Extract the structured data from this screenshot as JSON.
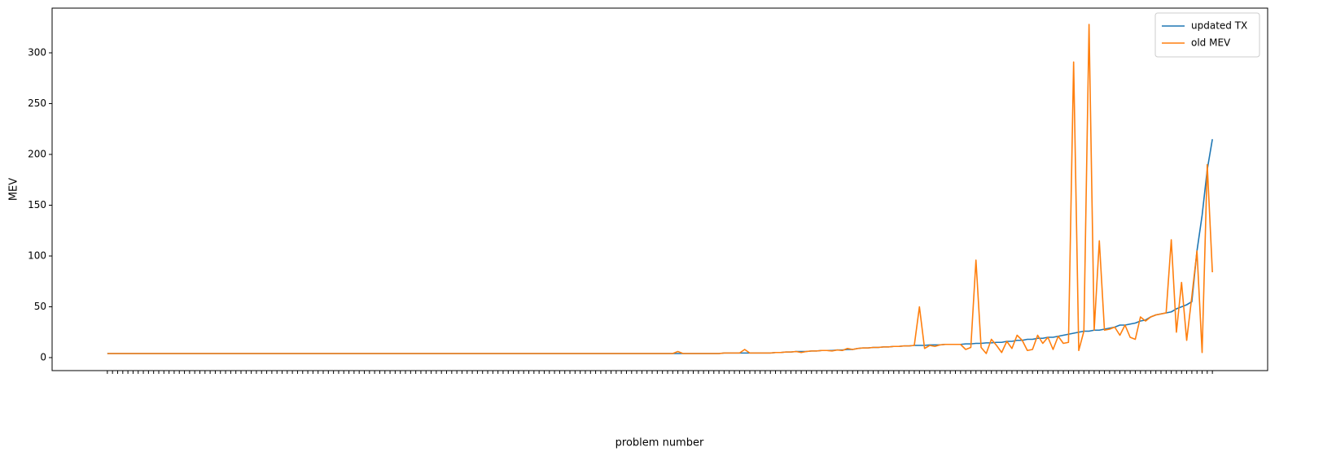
{
  "chart_data": {
    "type": "line",
    "xlabel": "problem number",
    "ylabel": "MEV",
    "categories": [
      null,
      null,
      null,
      null,
      null,
      null,
      null,
      null,
      null,
      null,
      null,
      null,
      null,
      null,
      null,
      null,
      null,
      null,
      null,
      null,
      null,
      null,
      null,
      null,
      null,
      null,
      null,
      null,
      null,
      null,
      null,
      null,
      null,
      null,
      null,
      null,
      null,
      null,
      null,
      null,
      null,
      null,
      null,
      null,
      null,
      null,
      null,
      null,
      null,
      null,
      null,
      null,
      null,
      null,
      null,
      null,
      null,
      null,
      null,
      null,
      null,
      null,
      null,
      null,
      null,
      null,
      null,
      null,
      null,
      null,
      null,
      null,
      null,
      null,
      null,
      null,
      null,
      null,
      null,
      null,
      null,
      null,
      null,
      null,
      null,
      null,
      null,
      null,
      null,
      null,
      null,
      null,
      null,
      null,
      null,
      null,
      null,
      null,
      null,
      null,
      null,
      null,
      null,
      null,
      null,
      null,
      null,
      null,
      null,
      null,
      null,
      null,
      null,
      null,
      null,
      null,
      null,
      null,
      null,
      null,
      null,
      null,
      null,
      null,
      null,
      null,
      null,
      null,
      null,
      null,
      null,
      null,
      null,
      null,
      null,
      null,
      null,
      null,
      null,
      null,
      null,
      null,
      null,
      null,
      null,
      null,
      null,
      null,
      null,
      null,
      null,
      null,
      null,
      null,
      null,
      null,
      null,
      null,
      null,
      null,
      null,
      null,
      null,
      null,
      null,
      null,
      null,
      null,
      null,
      null,
      null,
      null,
      null,
      null,
      null,
      null,
      null,
      null,
      null,
      null,
      null,
      null,
      null,
      null,
      null,
      null,
      null,
      null,
      null,
      null,
      null,
      null,
      null,
      null,
      null,
      null,
      null,
      null,
      null,
      null,
      null,
      null,
      null,
      null,
      null,
      null,
      null,
      null,
      null,
      null,
      null,
      null,
      null,
      null,
      null,
      null
    ],
    "series": [
      {
        "name": "updated TX",
        "color": "#1f77b4",
        "values": [
          4,
          4,
          4,
          4,
          4,
          4,
          4,
          4,
          4,
          4,
          4,
          4,
          4,
          4,
          4,
          4,
          4,
          4,
          4,
          4,
          4,
          4,
          4,
          4,
          4,
          4,
          4,
          4,
          4,
          4,
          4,
          4,
          4,
          4,
          4,
          4,
          4,
          4,
          4,
          4,
          4,
          4,
          4,
          4,
          4,
          4,
          4,
          4,
          4,
          4,
          4,
          4,
          4,
          4,
          4,
          4,
          4,
          4,
          4,
          4,
          4,
          4,
          4,
          4,
          4,
          4,
          4,
          4,
          4,
          4,
          4,
          4,
          4,
          4,
          4,
          4,
          4,
          4,
          4,
          4,
          4,
          4,
          4,
          4,
          4,
          4,
          4,
          4,
          4,
          4,
          4,
          4,
          4,
          4,
          4,
          4,
          4,
          4,
          4,
          4,
          4,
          4,
          4,
          4,
          4,
          4,
          4,
          4,
          4,
          4,
          4,
          4,
          4,
          4,
          4,
          4,
          4,
          4,
          4,
          4,
          4.5,
          4.5,
          4.5,
          4.5,
          4.5,
          4.5,
          4.5,
          4.5,
          4.5,
          4.5,
          5,
          5,
          5.5,
          5.5,
          6,
          6,
          6,
          6.5,
          6.5,
          7,
          7,
          7,
          7.5,
          7.5,
          8,
          8,
          9,
          9.5,
          9.5,
          10,
          10,
          10.5,
          10.5,
          11,
          11,
          11.5,
          11.5,
          12,
          12,
          12,
          12.5,
          12.5,
          12.5,
          13,
          13,
          13,
          13,
          13.5,
          13.5,
          14,
          14,
          14.5,
          14.5,
          15,
          15,
          16,
          16,
          17,
          17,
          18,
          18,
          19,
          19,
          20,
          20,
          21,
          22,
          23,
          24,
          25,
          26,
          26,
          27,
          27,
          28,
          29,
          30,
          32,
          32,
          33,
          34,
          36,
          37,
          40,
          42,
          43,
          44,
          45,
          48,
          50,
          52,
          55,
          105,
          140,
          185,
          215
        ]
      },
      {
        "name": "old MEV",
        "color": "#ff7f0e",
        "values": [
          4,
          4,
          4,
          4,
          4,
          4,
          4,
          4,
          4,
          4,
          4,
          4,
          4,
          4,
          4,
          4,
          4,
          4,
          4,
          4,
          4,
          4,
          4,
          4,
          4,
          4,
          4,
          4,
          4,
          4,
          4,
          4,
          4,
          4,
          4,
          4,
          4,
          4,
          4,
          4,
          4,
          4,
          4,
          4,
          4,
          4,
          4,
          4,
          4,
          4,
          4,
          4,
          4,
          4,
          4,
          4,
          4,
          4,
          4,
          4,
          4,
          4,
          4,
          4,
          4,
          4,
          4,
          4,
          4,
          4,
          4,
          4,
          4,
          4,
          4,
          4,
          4,
          4,
          4,
          4,
          4,
          4,
          4,
          4,
          4,
          4,
          4,
          4,
          4,
          4,
          4,
          4,
          4,
          4,
          4,
          4,
          4,
          4,
          4,
          4,
          4,
          4,
          4,
          4,
          4,
          4,
          4,
          4,
          4,
          4,
          4,
          6,
          4,
          4,
          4,
          4,
          4,
          4,
          4,
          4,
          4.5,
          4.5,
          4.5,
          4.5,
          8,
          4.5,
          4.5,
          4.5,
          4.5,
          4.5,
          5,
          5,
          5.5,
          5.5,
          6,
          5,
          6,
          6.5,
          6.5,
          7,
          7,
          6.5,
          7.5,
          7,
          9,
          8,
          9,
          9.5,
          9.5,
          10,
          10,
          10.5,
          10.5,
          11,
          11,
          11.5,
          11.5,
          12,
          50,
          9,
          12,
          11,
          12.5,
          13,
          13,
          13,
          13,
          8,
          10,
          96,
          10,
          4,
          18,
          12,
          5,
          16,
          9,
          22,
          17,
          7,
          8,
          22,
          14,
          20,
          8,
          21,
          14,
          15,
          291,
          7,
          26,
          328,
          27,
          115,
          27,
          28,
          30,
          22,
          32,
          20,
          18,
          40,
          36,
          40,
          42,
          43,
          44,
          116,
          25,
          74,
          17,
          60,
          105,
          5,
          190,
          84
        ]
      }
    ],
    "ylim": [
      -12.8,
      344
    ],
    "yticks": [
      0,
      50,
      100,
      150,
      200,
      250,
      300
    ],
    "legend": "upper right"
  }
}
